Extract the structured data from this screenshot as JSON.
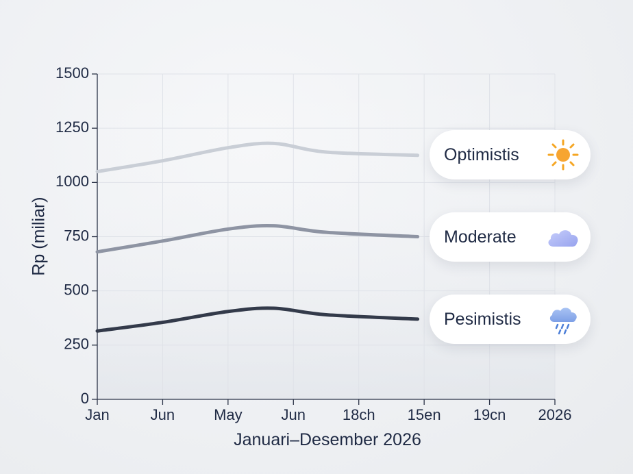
{
  "chart_data": {
    "type": "line",
    "xlabel": "Januari–Desember 2026",
    "ylabel": "Rp (miliar)",
    "ylim": [
      0,
      1500
    ],
    "yticks": [
      0,
      250,
      500,
      750,
      1000,
      1250,
      1500
    ],
    "xticks": [
      "Jan",
      "Jun",
      "May",
      "Jun",
      "18ch",
      "15en",
      "19cn",
      "2026"
    ],
    "grid": true,
    "legend_position": "right",
    "series": [
      {
        "name": "Optimistis",
        "color": "#c9ced6",
        "icon": "sun-icon",
        "x": [
          0,
          1,
          2,
          2.7,
          3.5,
          4.9
        ],
        "values": [
          1050,
          1100,
          1160,
          1180,
          1140,
          1125
        ]
      },
      {
        "name": "Moderate",
        "color": "#8e94a3",
        "icon": "cloud-icon",
        "x": [
          0,
          1,
          2,
          2.7,
          3.5,
          4.9
        ],
        "values": [
          680,
          730,
          785,
          800,
          770,
          750
        ]
      },
      {
        "name": "Pesimistis",
        "color": "#333a4a",
        "icon": "rain-cloud-icon",
        "x": [
          0,
          1,
          2,
          2.7,
          3.5,
          4.9
        ],
        "values": [
          315,
          355,
          405,
          420,
          390,
          370
        ]
      }
    ]
  }
}
